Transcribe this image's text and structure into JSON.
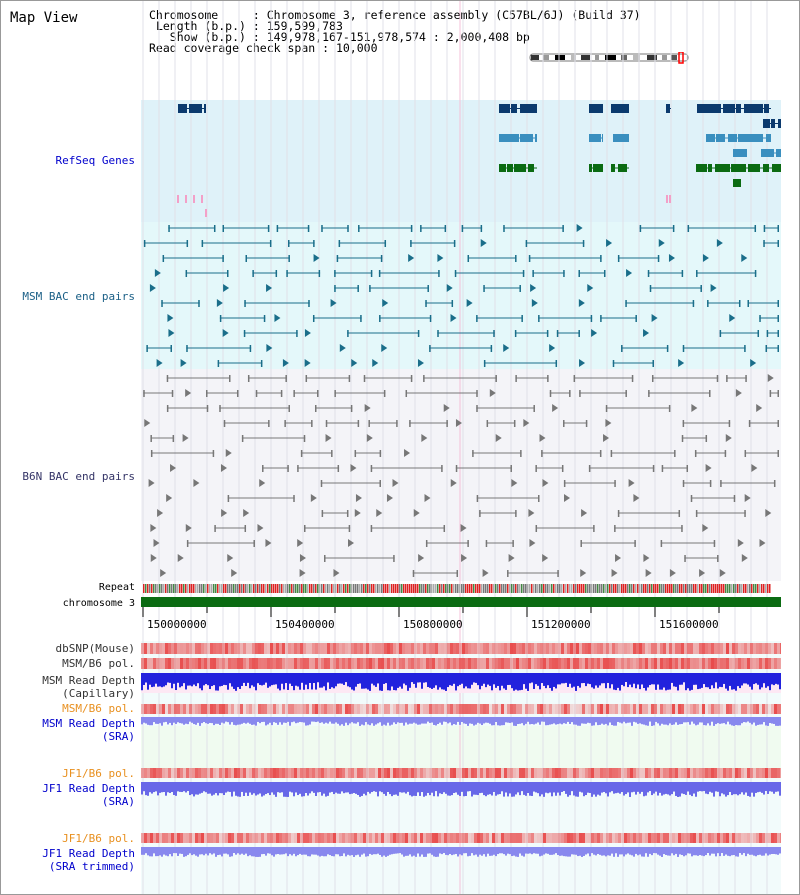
{
  "title": "Map View",
  "info": {
    "chromosome_key": "Chromosome",
    "chromosome_val": "Chromosome 3, reference assembly (C57BL/6J) (Build 37)",
    "length_key": "Length (b.p.)",
    "length_val": "159,599,783",
    "show_key": "Show (b.p.)",
    "show_val": "149,978,167-151,978,574 : 2,000,408 bp",
    "span_key": "Read coverage check span",
    "span_val": "10,000"
  },
  "tracks": {
    "refseq": "RefSeq Genes",
    "msm_bac": "MSM BAC end pairs",
    "b6n_bac": "B6N BAC end pairs",
    "repeat": "Repeat",
    "chrom": "chromosome 3",
    "dbsnp": "dbSNP(Mouse)",
    "msm_pol": "MSM/B6 pol.",
    "msm_depth_cap_1": "MSM Read Depth",
    "msm_depth_cap_2": "(Capillary)",
    "msm_pol2": "MSM/B6 pol.",
    "msm_depth_sra_1": "MSM Read Depth",
    "msm_depth_sra_2": "(SRA)",
    "jf1_pol": "JF1/B6 pol.",
    "jf1_depth_1": "JF1 Read Depth",
    "jf1_depth_2": "(SRA)",
    "jf1_pol2": "JF1/B6 pol.",
    "jf1_trim_1": "JF1 Read Depth",
    "jf1_trim_2": "(SRA trimmed)"
  },
  "axis": {
    "ticks": [
      "150000000",
      "150400000",
      "150800000",
      "151200000",
      "151600000"
    ]
  },
  "colors": {
    "refseq_bg": "#dff2f9",
    "msm_bg": "#e4f8fa",
    "b6n_bg": "#f4f4f8",
    "refseq_dark": "#0b3a6e",
    "refseq_mid": "#3a8fbf",
    "refseq_green": "#0b6b12",
    "msm_line": "#1a6e8a",
    "b6n_line": "#777777",
    "chrom_green": "#0b6b12",
    "depth_blue": "#2222dd",
    "depth_lav": "#8888ee",
    "pol_red": "#e84c4c"
  }
}
